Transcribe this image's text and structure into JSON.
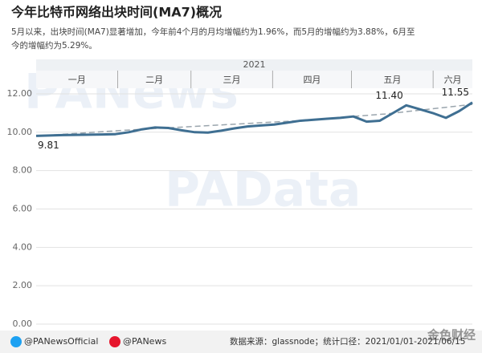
{
  "chart_data": {
    "type": "line",
    "title": "今年比特币网络出块时间(MA7)概况",
    "subtitle": [
      "5月以来，出块时间(MA7)显著增加，今年前4个月的月均增幅约为1.96%，而5月的增幅约为3.88%，6月至",
      "今的增幅约为5.29%。"
    ],
    "year": "2021",
    "months": [
      "一月",
      "二月",
      "三月",
      "四月",
      "五月",
      "六月"
    ],
    "series": [
      {
        "color": "#3f6f92",
        "values": [
          9.81,
          9.83,
          9.85,
          9.86,
          9.87,
          9.88,
          9.9,
          10.0,
          10.15,
          10.25,
          10.22,
          10.1,
          10.0,
          9.98,
          10.08,
          10.2,
          10.3,
          10.35,
          10.4,
          10.5,
          10.6,
          10.65,
          10.7,
          10.75,
          10.82,
          10.55,
          10.6,
          11.0,
          11.4,
          11.2,
          11.0,
          10.75,
          11.1,
          11.55
        ],
        "value_labels": [
          "9.81",
          null,
          null,
          null,
          null,
          null,
          null,
          null,
          null,
          null,
          null,
          null,
          null,
          null,
          null,
          null,
          null,
          null,
          null,
          null,
          null,
          null,
          null,
          null,
          null,
          null,
          null,
          null,
          "11.40",
          null,
          null,
          null,
          null,
          "11.55"
        ]
      }
    ],
    "trend": {
      "color": "#9aa5ad",
      "values": [
        9.8,
        10.1,
        10.35,
        10.6,
        10.95,
        11.45
      ]
    },
    "ylim": [
      0,
      12.5
    ],
    "yticks": [
      {
        "value": 0,
        "label": "0.00"
      },
      {
        "value": 2,
        "label": "2.00"
      },
      {
        "value": 4,
        "label": "4.00"
      },
      {
        "value": 6,
        "label": "6.00"
      },
      {
        "value": 8,
        "label": "8.00"
      },
      {
        "value": 10,
        "label": "10.00"
      },
      {
        "value": 12,
        "label": "12.00"
      }
    ],
    "grid": true,
    "watermarks": [
      "PANews",
      "PAData"
    ],
    "footer": {
      "twitter": "@PANewsOfficial",
      "weibo": "@PANews",
      "source": "数据来源：glassnode；统计口径：2021/01/01-2021/06/15",
      "logo": "金色财经"
    }
  }
}
